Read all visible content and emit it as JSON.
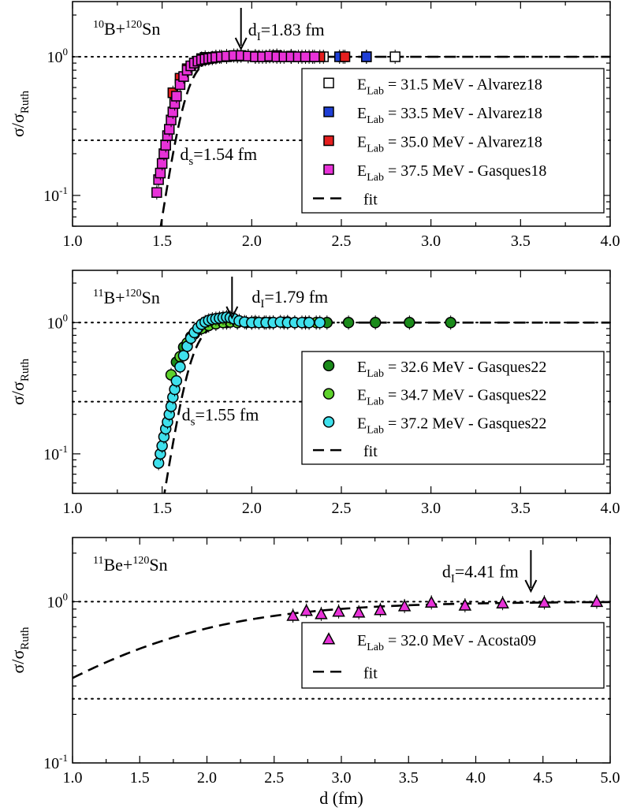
{
  "chart_data": [
    {
      "type": "scatter",
      "yscale": "log",
      "ylim": [
        0.06,
        2.5
      ],
      "xlim": [
        1.0,
        4.0
      ],
      "xticks": [
        "1.0",
        "1.5",
        "2.0",
        "2.5",
        "3.0",
        "3.5",
        "4.0"
      ],
      "yticks": [
        {
          "value": 1,
          "base": "10",
          "exp": "0"
        },
        {
          "value": 0.1,
          "base": "10",
          "exp": "-1"
        }
      ],
      "ylabel": {
        "main": "σ/σ",
        "sub": "Ruth"
      },
      "xlabel": "",
      "reaction": {
        "m1": "10",
        "e1": "B+",
        "m2": "120",
        "e2": "Sn"
      },
      "ref_lines": [
        1.0,
        0.25
      ],
      "d_I": {
        "pre": "d",
        "sub": "I",
        "text": "=1.83 fm",
        "x": 1.94,
        "label_x": 1.98,
        "label_y": 1.42
      },
      "d_s": {
        "pre": "d",
        "sub": "s",
        "text": "=1.54 fm",
        "label_x": 1.6,
        "label_y": 0.18
      },
      "fit": {
        "x0": 1.43,
        "x1": 4.0,
        "k": 20,
        "c": 1.63
      },
      "series": [
        {
          "name": "Alvarez18",
          "energy": "= 31.5 MeV - Alvarez18",
          "marker": "square",
          "color": "#ffffff",
          "x": [
            1.74,
            1.8,
            1.86,
            1.92,
            1.98,
            2.04,
            2.1,
            2.16,
            2.22,
            2.28,
            2.34,
            2.4,
            2.51,
            2.64,
            2.8
          ],
          "y": [
            0.99,
            1.0,
            1.01,
            1.02,
            1.01,
            1.0,
            1.01,
            1.0,
            1.01,
            1.0,
            1.0,
            1.0,
            1.0,
            1.0,
            1.0
          ]
        },
        {
          "name": "Alvarez18",
          "energy": "= 33.5  MeV - Alvarez18",
          "marker": "square",
          "color": "#1f3fd6",
          "x": [
            1.72,
            1.82,
            1.92,
            2.02,
            2.12,
            2.22,
            2.32,
            2.49,
            2.64
          ],
          "y": [
            0.97,
            1.0,
            1.01,
            1.0,
            1.01,
            1.0,
            1.0,
            1.0,
            1.0
          ]
        },
        {
          "name": "Alvarez18",
          "energy": "= 35.0 MeV - Alvarez18",
          "marker": "square",
          "color": "#e61f1f",
          "x": [
            1.56,
            1.6,
            1.64,
            1.68,
            1.72,
            1.78,
            1.86,
            1.94,
            2.02,
            2.08,
            2.14,
            2.22,
            2.3,
            2.38,
            2.52
          ],
          "y": [
            0.55,
            0.7,
            0.82,
            0.9,
            0.95,
            0.98,
            1.0,
            1.02,
            1.01,
            1.0,
            1.02,
            1.01,
            1.0,
            1.0,
            1.0
          ]
        },
        {
          "name": "Gasques18",
          "energy": "= 37.5 MeV - Gasques18",
          "marker": "square",
          "color": "#e832d8",
          "x": [
            1.47,
            1.48,
            1.49,
            1.5,
            1.51,
            1.52,
            1.53,
            1.54,
            1.55,
            1.56,
            1.57,
            1.58,
            1.6,
            1.62,
            1.64,
            1.66,
            1.68,
            1.7,
            1.72,
            1.74,
            1.76,
            1.78,
            1.8,
            1.83,
            1.86,
            1.9,
            1.94,
            1.98,
            2.02,
            2.06,
            2.1,
            2.14,
            2.18,
            2.22,
            2.26,
            2.3,
            2.35
          ],
          "y": [
            0.105,
            0.13,
            0.145,
            0.17,
            0.2,
            0.23,
            0.27,
            0.3,
            0.35,
            0.4,
            0.46,
            0.52,
            0.63,
            0.72,
            0.8,
            0.86,
            0.9,
            0.93,
            0.95,
            0.96,
            0.97,
            0.98,
            0.99,
            1.0,
            1.01,
            1.02,
            1.02,
            1.01,
            1.0,
            1.0,
            1.01,
            1.0,
            1.0,
            1.0,
            1.0,
            1.0,
            1.0
          ]
        }
      ],
      "legend": [
        {
          "kind": "marker",
          "marker": "square",
          "color": "#ffffff",
          "pre": "E",
          "sub": "Lab",
          "text": "= 31.5 MeV - Alvarez18"
        },
        {
          "kind": "marker",
          "marker": "square",
          "color": "#1f3fd6",
          "pre": "E",
          "sub": "Lab",
          "text": "= 33.5  MeV - Alvarez18"
        },
        {
          "kind": "marker",
          "marker": "square",
          "color": "#e61f1f",
          "pre": "E",
          "sub": "Lab",
          "text": "= 35.0 MeV - Alvarez18"
        },
        {
          "kind": "marker",
          "marker": "square",
          "color": "#e832d8",
          "pre": "E",
          "sub": "Lab",
          "text": "= 37.5 MeV - Gasques18"
        },
        {
          "kind": "line",
          "text": "fit"
        }
      ]
    },
    {
      "type": "scatter",
      "yscale": "log",
      "ylim": [
        0.05,
        2.5
      ],
      "xlim": [
        1.0,
        4.0
      ],
      "xticks": [
        "1.0",
        "1.5",
        "2.0",
        "2.5",
        "3.0",
        "3.5",
        "4.0"
      ],
      "yticks": [
        {
          "value": 1,
          "base": "10",
          "exp": "0"
        },
        {
          "value": 0.1,
          "base": "10",
          "exp": "-1"
        }
      ],
      "ylabel": {
        "main": "σ/σ",
        "sub": "Ruth"
      },
      "xlabel": "",
      "reaction": {
        "m1": "11",
        "e1": "B+",
        "m2": "120",
        "e2": "Sn"
      },
      "ref_lines": [
        1.0,
        0.25
      ],
      "d_I": {
        "pre": "d",
        "sub": "I",
        "text": "=1.79 fm",
        "x": 1.89,
        "label_x": 2.0,
        "label_y": 1.42
      },
      "d_s": {
        "pre": "d",
        "sub": "s",
        "text": "=1.55 fm",
        "label_x": 1.61,
        "label_y": 0.18
      },
      "fit": {
        "x0": 1.46,
        "x1": 4.0,
        "k": 20,
        "c": 1.66
      },
      "series": [
        {
          "name": "Gasques22",
          "energy": "= 32.6 MeV - Gasques22",
          "marker": "circle",
          "color": "#1a8a1a",
          "x": [
            1.58,
            1.62,
            1.66,
            1.7,
            1.74,
            1.8,
            1.86,
            1.92,
            2.0,
            2.1,
            2.2,
            2.32,
            2.42,
            2.54,
            2.69,
            2.88,
            3.11
          ],
          "y": [
            0.5,
            0.65,
            0.78,
            0.88,
            0.94,
            0.98,
            1.0,
            1.01,
            1.0,
            1.0,
            1.01,
            1.0,
            1.0,
            1.0,
            1.0,
            1.0,
            1.0
          ]
        },
        {
          "name": "Gasques22",
          "energy": "= 34.7 MeV - Gasques22",
          "marker": "circle",
          "color": "#5ed22c",
          "x": [
            1.55,
            1.6,
            1.64,
            1.68,
            1.72,
            1.76,
            1.8,
            1.84,
            1.88,
            1.92,
            1.97,
            2.02,
            2.07,
            2.12,
            2.18,
            2.24,
            2.3,
            2.36
          ],
          "y": [
            0.4,
            0.55,
            0.7,
            0.82,
            0.9,
            0.95,
            0.98,
            1.0,
            1.01,
            1.0,
            1.0,
            1.01,
            1.0,
            1.0,
            1.0,
            1.0,
            1.0,
            1.0
          ]
        },
        {
          "name": "Gasques22",
          "energy": "= 37.2 MeV - Gasques22",
          "marker": "circle",
          "color": "#3ee0ec",
          "x": [
            1.48,
            1.49,
            1.5,
            1.51,
            1.52,
            1.53,
            1.54,
            1.55,
            1.56,
            1.57,
            1.58,
            1.6,
            1.62,
            1.64,
            1.66,
            1.68,
            1.7,
            1.72,
            1.74,
            1.76,
            1.78,
            1.8,
            1.82,
            1.84,
            1.86,
            1.88,
            1.9,
            1.93,
            1.96,
            2.0,
            2.04,
            2.08,
            2.12,
            2.16,
            2.2,
            2.24,
            2.28,
            2.32,
            2.38
          ],
          "y": [
            0.085,
            0.1,
            0.115,
            0.135,
            0.155,
            0.175,
            0.2,
            0.23,
            0.27,
            0.31,
            0.36,
            0.46,
            0.56,
            0.66,
            0.76,
            0.84,
            0.91,
            0.97,
            1.01,
            1.04,
            1.06,
            1.07,
            1.08,
            1.09,
            1.1,
            1.09,
            1.07,
            1.03,
            1.01,
            1.0,
            1.0,
            1.0,
            1.0,
            1.01,
            1.0,
            1.0,
            1.0,
            1.0,
            1.0
          ]
        }
      ],
      "legend": [
        {
          "kind": "marker",
          "marker": "circle",
          "color": "#1a8a1a",
          "pre": "E",
          "sub": "Lab",
          "text": "= 32.6 MeV - Gasques22"
        },
        {
          "kind": "marker",
          "marker": "circle",
          "color": "#5ed22c",
          "pre": "E",
          "sub": "Lab",
          "text": "= 34.7 MeV - Gasques22"
        },
        {
          "kind": "marker",
          "marker": "circle",
          "color": "#3ee0ec",
          "pre": "E",
          "sub": "Lab",
          "text": "= 37.2 MeV - Gasques22"
        },
        {
          "kind": "line",
          "text": "fit"
        }
      ]
    },
    {
      "type": "scatter",
      "yscale": "log",
      "ylim": [
        0.1,
        2.5
      ],
      "xlim": [
        1.0,
        5.0
      ],
      "xticks": [
        "1.0",
        "1.5",
        "2.0",
        "2.5",
        "3.0",
        "3.5",
        "4.0",
        "4.5",
        "5.0"
      ],
      "yticks": [
        {
          "value": 1,
          "base": "10",
          "exp": "0"
        },
        {
          "value": 0.1,
          "base": "10",
          "exp": "-1"
        }
      ],
      "ylabel": {
        "main": "σ/σ",
        "sub": "Ruth"
      },
      "xlabel": "d (fm)",
      "reaction": {
        "m1": "11",
        "e1": "Be+",
        "m2": "120",
        "e2": "Sn"
      },
      "ref_lines": [
        1.0,
        0.25
      ],
      "d_I": {
        "pre": "d",
        "sub": "I",
        "text": "=4.41 fm",
        "x": 4.41,
        "label_x": 3.75,
        "label_y": 1.42
      },
      "fit": {
        "x0": 1.0,
        "x1": 5.0,
        "k": 1.45,
        "c": 1.47
      },
      "series": [
        {
          "name": "Acosta09",
          "energy": "= 32.0 MeV - Acosta09",
          "marker": "triangle",
          "color": "#e832d8",
          "x": [
            2.64,
            2.74,
            2.85,
            2.98,
            3.13,
            3.29,
            3.47,
            3.67,
            3.92,
            4.2,
            4.51,
            4.9
          ],
          "y": [
            0.82,
            0.88,
            0.84,
            0.87,
            0.86,
            0.89,
            0.94,
            0.99,
            0.95,
            0.98,
            0.99,
            1.0
          ]
        }
      ],
      "legend": [
        {
          "kind": "marker",
          "marker": "triangle",
          "color": "#e832d8",
          "pre": "E",
          "sub": "Lab",
          "text": "= 32.0 MeV - Acosta09"
        },
        {
          "kind": "line",
          "text": "fit"
        }
      ]
    }
  ]
}
